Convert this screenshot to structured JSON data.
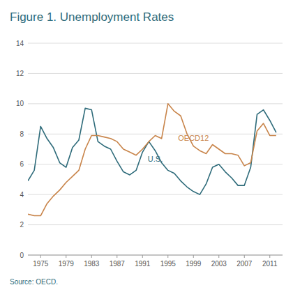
{
  "chart_data": {
    "type": "line",
    "title": "Figure 1. Unemployment Rates",
    "annotations": [
      "Source: OECD."
    ],
    "x": [
      1973,
      1974,
      1975,
      1976,
      1977,
      1978,
      1979,
      1980,
      1981,
      1982,
      1983,
      1984,
      1985,
      1986,
      1987,
      1988,
      1989,
      1990,
      1991,
      1992,
      1993,
      1994,
      1995,
      1996,
      1997,
      1998,
      1999,
      2000,
      2001,
      2002,
      2003,
      2004,
      2005,
      2006,
      2007,
      2008,
      2009,
      2010,
      2011,
      2012
    ],
    "series": [
      {
        "name": "U.S.",
        "color": "#2e6b7a",
        "values": [
          4.9,
          5.6,
          8.5,
          7.7,
          7.1,
          6.1,
          5.8,
          7.1,
          7.6,
          9.7,
          9.6,
          7.5,
          7.2,
          7.0,
          6.2,
          5.5,
          5.3,
          5.6,
          6.8,
          7.5,
          6.9,
          6.1,
          5.6,
          5.4,
          4.9,
          4.5,
          4.2,
          4.0,
          4.7,
          5.8,
          6.0,
          5.5,
          5.1,
          4.6,
          4.6,
          5.8,
          9.3,
          9.6,
          8.9,
          8.1
        ]
      },
      {
        "name": "OECD12",
        "color": "#c8844a",
        "values": [
          2.7,
          2.6,
          2.6,
          3.4,
          3.9,
          4.3,
          4.8,
          5.2,
          5.6,
          7.0,
          7.9,
          7.9,
          7.8,
          7.7,
          7.5,
          7.0,
          6.8,
          6.6,
          7.0,
          7.5,
          7.9,
          7.7,
          10.0,
          9.5,
          9.2,
          8.0,
          7.2,
          6.9,
          6.7,
          7.3,
          7.0,
          6.7,
          6.7,
          6.6,
          5.9,
          6.1,
          8.2,
          8.7,
          7.9,
          7.9
        ]
      }
    ],
    "xlim": [
      1973,
      2013
    ],
    "xticks": [
      1975,
      1979,
      1983,
      1987,
      1991,
      1995,
      1999,
      2003,
      2007,
      2011
    ],
    "ylim": [
      0,
      14
    ],
    "yticks": [
      0,
      2,
      4,
      6,
      8,
      10,
      12,
      14
    ],
    "grid": true
  }
}
